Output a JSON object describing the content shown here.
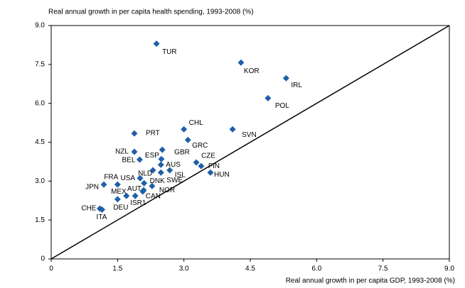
{
  "chart_data": {
    "type": "scatter",
    "y_axis_label": "Real annual growth in per capita health spending, 1993-2008 (%)",
    "x_axis_label": "Real annual growth in per capita GDP, 1993-2008 (%)",
    "labels": [
      "TUR",
      "KOR",
      "IRL",
      "POL",
      "SVN",
      "CHL",
      "PRT",
      "GRC",
      "NZL",
      "GBR",
      "BEL",
      "ESP",
      "AUS",
      "CZE",
      "FIN",
      "HUN",
      "ISL",
      "SWE",
      "NLD",
      "USA",
      "DNK",
      "NOR",
      "FRA",
      "JPN",
      "AUT",
      "MEX",
      "CAN",
      "ISR1",
      "DEU",
      "CHE",
      "ITA"
    ],
    "x": [
      2.38,
      4.29,
      5.31,
      4.9,
      4.1,
      3.0,
      1.88,
      3.09,
      1.88,
      2.51,
      2.0,
      2.49,
      2.48,
      3.28,
      3.39,
      3.6,
      2.68,
      2.48,
      2.3,
      2.01,
      2.1,
      2.28,
      1.5,
      1.19,
      2.09,
      1.7,
      2.07,
      1.9,
      1.5,
      1.1,
      1.15
    ],
    "values": [
      8.3,
      7.57,
      6.97,
      6.2,
      5.0,
      5.0,
      4.84,
      4.59,
      4.13,
      4.21,
      3.83,
      3.85,
      3.63,
      3.72,
      3.58,
      3.33,
      3.42,
      3.33,
      3.42,
      3.11,
      2.92,
      2.81,
      2.87,
      2.87,
      2.65,
      2.43,
      2.6,
      2.43,
      2.3,
      1.94,
      1.9
    ],
    "color": "#1f5fa8",
    "xlim": [
      0,
      9
    ],
    "ylim": [
      0,
      9
    ],
    "xticks": [
      0,
      1.5,
      {
        "value": 3,
        "label": "3.0"
      },
      4.5,
      {
        "value": 6,
        "label": "6.0"
      },
      7.5,
      {
        "value": 9,
        "label": "9.0"
      }
    ],
    "yticks": [
      0,
      1.5,
      {
        "value": 3,
        "label": "3.0"
      },
      4.5,
      {
        "value": 6,
        "label": "6.0"
      },
      7.5,
      {
        "value": 9,
        "label": "9.0"
      }
    ],
    "grid": false
  }
}
